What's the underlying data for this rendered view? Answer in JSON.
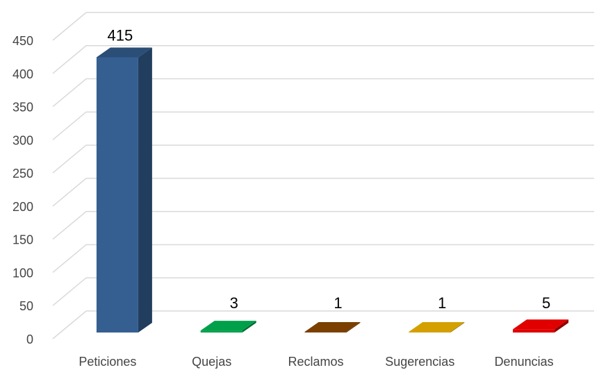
{
  "chart_data": {
    "type": "bar",
    "style": "3d-column",
    "categories": [
      "Peticiones",
      "Quejas",
      "Reclamos",
      "Sugerencias",
      "Denuncias"
    ],
    "values": [
      415,
      3,
      1,
      1,
      5
    ],
    "data_labels": [
      "415",
      "3",
      "1",
      "1",
      "5"
    ],
    "colors": [
      "#355f91",
      "#00a04a",
      "#7b3f00",
      "#d4a000",
      "#e00000"
    ],
    "ylim": [
      0,
      450
    ],
    "yticks": [
      0,
      50,
      100,
      150,
      200,
      250,
      300,
      350,
      400,
      450
    ],
    "ytick_labels": [
      "0",
      "50",
      "100",
      "150",
      "200",
      "250",
      "300",
      "350",
      "400",
      "450"
    ],
    "title": "",
    "xlabel": "",
    "ylabel": "",
    "grid": true,
    "legend": "none"
  }
}
